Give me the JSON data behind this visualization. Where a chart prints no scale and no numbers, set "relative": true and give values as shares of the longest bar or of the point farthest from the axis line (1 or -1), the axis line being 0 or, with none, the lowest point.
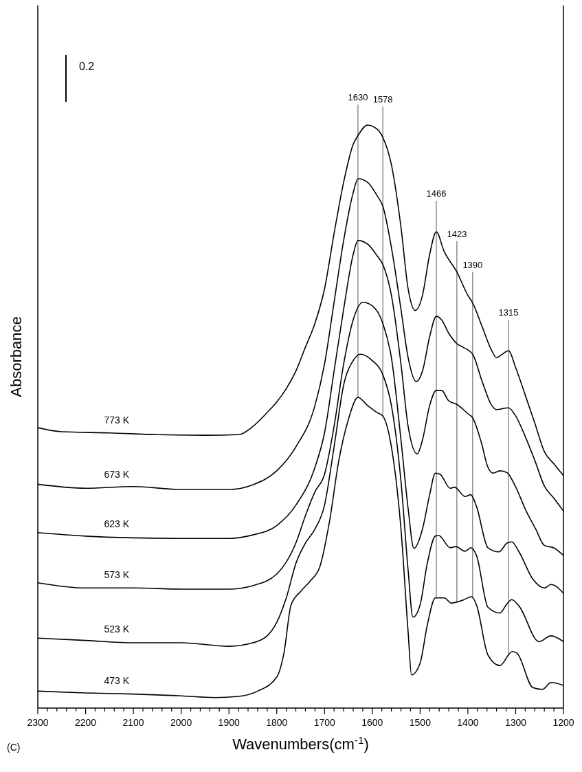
{
  "chart_data": {
    "type": "line",
    "relative": true,
    "xlabel": "Wavenumbers(cm$^{-1}$)",
    "ylabel": "Absorbance",
    "annotations": [
      "0.2",
      "(C)"
    ],
    "xlim": [
      2300,
      1200
    ],
    "xticks": [
      2300,
      {
        "value": 2280,
        "label": null
      },
      {
        "value": 2260,
        "label": null
      },
      {
        "value": 2240,
        "label": null
      },
      {
        "value": 2220,
        "label": null
      },
      2200,
      {
        "value": 2180,
        "label": null
      },
      {
        "value": 2160,
        "label": null
      },
      {
        "value": 2140,
        "label": null
      },
      {
        "value": 2120,
        "label": null
      },
      2100,
      {
        "value": 2080,
        "label": null
      },
      {
        "value": 2060,
        "label": null
      },
      {
        "value": 2040,
        "label": null
      },
      {
        "value": 2020,
        "label": null
      },
      2000,
      {
        "value": 1980,
        "label": null
      },
      {
        "value": 1960,
        "label": null
      },
      {
        "value": 1940,
        "label": null
      },
      {
        "value": 1920,
        "label": null
      },
      1900,
      {
        "value": 1880,
        "label": null
      },
      {
        "value": 1860,
        "label": null
      },
      {
        "value": 1840,
        "label": null
      },
      {
        "value": 1820,
        "label": null
      },
      1800,
      {
        "value": 1780,
        "label": null
      },
      {
        "value": 1760,
        "label": null
      },
      {
        "value": 1740,
        "label": null
      },
      {
        "value": 1720,
        "label": null
      },
      1700,
      {
        "value": 1680,
        "label": null
      },
      {
        "value": 1660,
        "label": null
      },
      {
        "value": 1640,
        "label": null
      },
      {
        "value": 1620,
        "label": null
      },
      1600,
      {
        "value": 1580,
        "label": null
      },
      {
        "value": 1560,
        "label": null
      },
      {
        "value": 1540,
        "label": null
      },
      {
        "value": 1520,
        "label": null
      },
      1500,
      {
        "value": 1480,
        "label": null
      },
      {
        "value": 1460,
        "label": null
      },
      {
        "value": 1440,
        "label": null
      },
      {
        "value": 1420,
        "label": null
      },
      1400,
      {
        "value": 1380,
        "label": null
      },
      {
        "value": 1360,
        "label": null
      },
      {
        "value": 1340,
        "label": null
      },
      {
        "value": 1320,
        "label": null
      },
      1300,
      {
        "value": 1280,
        "label": null
      },
      {
        "value": 1260,
        "label": null
      },
      {
        "value": 1240,
        "label": null
      },
      {
        "value": 1220,
        "label": null
      },
      1200
    ],
    "grid": false,
    "marker": "none",
    "line_style": "solid",
    "tick_labels": "x",
    "ref_lines": [
      {
        "axis": "x",
        "value": 1630,
        "label": "1630",
        "color": "#555555"
      },
      {
        "axis": "x",
        "value": 1578,
        "label": "1578",
        "color": "#555555"
      },
      {
        "axis": "x",
        "value": 1466,
        "label": "1466",
        "color": "#555555"
      },
      {
        "axis": "x",
        "value": 1423,
        "label": "1423",
        "color": "#555555"
      },
      {
        "axis": "x",
        "value": 1390,
        "label": "1390",
        "color": "#555555"
      },
      {
        "axis": "x",
        "value": 1315,
        "label": "1315",
        "color": "#555555"
      }
    ],
    "series": [
      {
        "name": "773 K",
        "color": "#000000",
        "x": [
          2300,
          2250,
          2150,
          2050,
          1950,
          1880,
          1850,
          1820,
          1800,
          1780,
          1760,
          1740,
          1720,
          1700,
          1680,
          1660,
          1640,
          1630,
          1610,
          1590,
          1578,
          1560,
          1540,
          1525,
          1510,
          1495,
          1480,
          1466,
          1450,
          1423,
          1400,
          1390,
          1370,
          1350,
          1340,
          1330,
          1315,
          1300,
          1280,
          1260,
          1240,
          1220,
          1200
        ],
        "values": [
          0.481,
          0.474,
          0.472,
          0.469,
          0.468,
          0.469,
          0.483,
          0.507,
          0.525,
          0.548,
          0.578,
          0.619,
          0.66,
          0.719,
          0.814,
          0.902,
          0.967,
          0.982,
          1.0,
          0.993,
          0.979,
          0.932,
          0.825,
          0.719,
          0.682,
          0.708,
          0.778,
          0.817,
          0.784,
          0.748,
          0.708,
          0.695,
          0.654,
          0.613,
          0.601,
          0.606,
          0.613,
          0.584,
          0.537,
          0.489,
          0.44,
          0.419,
          0.399
        ]
      },
      {
        "name": "673 K",
        "color": "#000000",
        "x": [
          2300,
          2200,
          2100,
          2000,
          1900,
          1850,
          1800,
          1760,
          1720,
          1700,
          1680,
          1660,
          1640,
          1630,
          1610,
          1590,
          1578,
          1560,
          1540,
          1525,
          1508,
          1495,
          1480,
          1466,
          1455,
          1440,
          1423,
          1410,
          1390,
          1370,
          1350,
          1340,
          1315,
          1300,
          1280,
          1260,
          1240,
          1220,
          1200
        ],
        "values": [
          0.384,
          0.377,
          0.38,
          0.375,
          0.375,
          0.383,
          0.407,
          0.448,
          0.519,
          0.59,
          0.696,
          0.802,
          0.884,
          0.908,
          0.902,
          0.879,
          0.861,
          0.79,
          0.684,
          0.601,
          0.56,
          0.578,
          0.637,
          0.672,
          0.666,
          0.643,
          0.625,
          0.619,
          0.607,
          0.56,
          0.519,
          0.512,
          0.515,
          0.501,
          0.466,
          0.425,
          0.381,
          0.36,
          0.338
        ]
      },
      {
        "name": "623 K",
        "color": "#000000",
        "x": [
          2300,
          2200,
          2100,
          2000,
          1900,
          1850,
          1800,
          1760,
          1720,
          1700,
          1680,
          1660,
          1640,
          1630,
          1610,
          1590,
          1578,
          1560,
          1540,
          1525,
          1506,
          1495,
          1480,
          1466,
          1455,
          1440,
          1423,
          1400,
          1390,
          1372,
          1358,
          1347,
          1333,
          1318,
          1301,
          1278,
          1258,
          1240,
          1221,
          1200
        ],
        "values": [
          0.301,
          0.295,
          0.292,
          0.291,
          0.291,
          0.297,
          0.313,
          0.348,
          0.413,
          0.472,
          0.578,
          0.684,
          0.778,
          0.802,
          0.796,
          0.776,
          0.761,
          0.708,
          0.59,
          0.483,
          0.436,
          0.46,
          0.519,
          0.545,
          0.545,
          0.527,
          0.521,
          0.505,
          0.498,
          0.456,
          0.413,
          0.403,
          0.407,
          0.404,
          0.381,
          0.338,
          0.307,
          0.279,
          0.275,
          0.262
        ]
      },
      {
        "name": "573 K",
        "color": "#000000",
        "x": [
          2300,
          2200,
          2100,
          2000,
          1900,
          1850,
          1800,
          1760,
          1740,
          1720,
          1700,
          1680,
          1660,
          1640,
          1620,
          1600,
          1578,
          1560,
          1540,
          1525,
          1513,
          1495,
          1480,
          1468,
          1458,
          1437,
          1428,
          1406,
          1394,
          1382,
          1358,
          1335,
          1318,
          1308,
          1293,
          1264,
          1240,
          1226,
          1200
        ],
        "values": [
          0.215,
          0.206,
          0.206,
          0.204,
          0.204,
          0.21,
          0.23,
          0.283,
          0.33,
          0.371,
          0.401,
          0.483,
          0.59,
          0.666,
          0.696,
          0.69,
          0.66,
          0.601,
          0.46,
          0.342,
          0.274,
          0.307,
          0.366,
          0.403,
          0.401,
          0.377,
          0.379,
          0.363,
          0.366,
          0.346,
          0.275,
          0.268,
          0.283,
          0.285,
          0.268,
          0.221,
          0.206,
          0.212,
          0.197
        ]
      },
      {
        "name": "523 K",
        "color": "#000000",
        "x": [
          2300,
          2200,
          2100,
          2000,
          1900,
          1850,
          1820,
          1800,
          1780,
          1760,
          1740,
          1720,
          1700,
          1680,
          1660,
          1640,
          1625,
          1600,
          1578,
          1560,
          1540,
          1525,
          1515,
          1500,
          1485,
          1468,
          1461,
          1437,
          1425,
          1406,
          1394,
          1382,
          1358,
          1333,
          1318,
          1308,
          1293,
          1251,
          1226,
          1200
        ],
        "values": [
          0.12,
          0.116,
          0.112,
          0.112,
          0.106,
          0.112,
          0.124,
          0.147,
          0.189,
          0.248,
          0.283,
          0.307,
          0.348,
          0.448,
          0.554,
          0.596,
          0.607,
          0.596,
          0.572,
          0.519,
          0.389,
          0.236,
          0.156,
          0.177,
          0.248,
          0.295,
          0.296,
          0.275,
          0.277,
          0.269,
          0.275,
          0.262,
          0.173,
          0.163,
          0.179,
          0.186,
          0.175,
          0.114,
          0.124,
          0.114
        ]
      },
      {
        "name": "473 K",
        "color": "#000000",
        "x": [
          2300,
          2200,
          2100,
          2000,
          1930,
          1880,
          1840,
          1800,
          1785,
          1770,
          1750,
          1730,
          1710,
          1690,
          1670,
          1650,
          1630,
          1610,
          1590,
          1578,
          1560,
          1540,
          1525,
          1518,
          1500,
          1485,
          1468,
          1449,
          1435,
          1411,
          1392,
          1382,
          1358,
          1333,
          1307,
          1297,
          1264,
          1244,
          1226,
          1200
        ],
        "values": [
          0.029,
          0.026,
          0.024,
          0.021,
          0.018,
          0.02,
          0.029,
          0.053,
          0.094,
          0.177,
          0.2,
          0.218,
          0.242,
          0.318,
          0.425,
          0.495,
          0.533,
          0.519,
          0.507,
          0.501,
          0.448,
          0.307,
          0.13,
          0.057,
          0.077,
          0.142,
          0.189,
          0.189,
          0.18,
          0.185,
          0.191,
          0.177,
          0.091,
          0.073,
          0.097,
          0.094,
          0.035,
          0.032,
          0.044,
          0.039
        ]
      }
    ]
  }
}
